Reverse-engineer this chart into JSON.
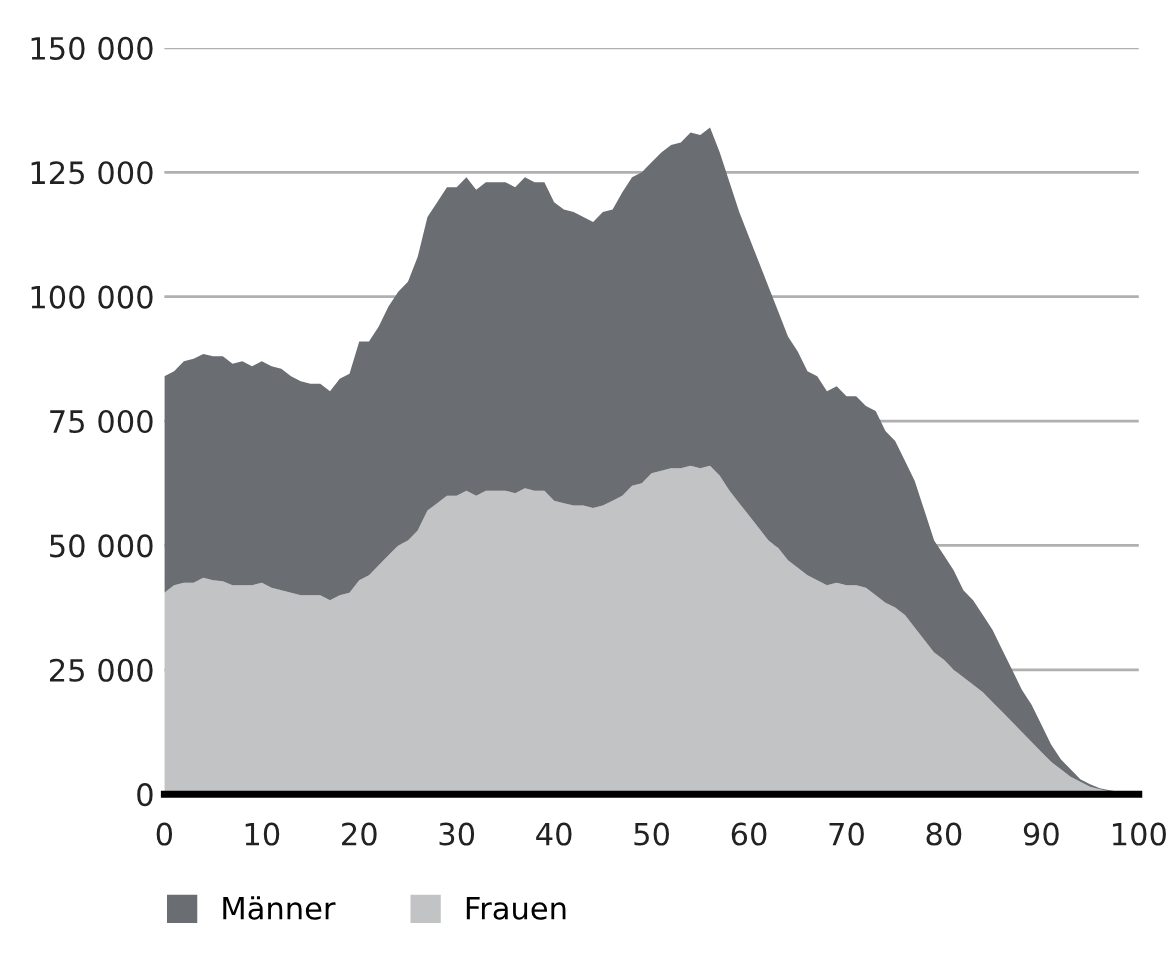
{
  "chart_data": {
    "type": "area",
    "stacked": true,
    "x": [
      0,
      1,
      2,
      3,
      4,
      5,
      6,
      7,
      8,
      9,
      10,
      11,
      12,
      13,
      14,
      15,
      16,
      17,
      18,
      19,
      20,
      21,
      22,
      23,
      24,
      25,
      26,
      27,
      28,
      29,
      30,
      31,
      32,
      33,
      34,
      35,
      36,
      37,
      38,
      39,
      40,
      41,
      42,
      43,
      44,
      45,
      46,
      47,
      48,
      49,
      50,
      51,
      52,
      53,
      54,
      55,
      56,
      57,
      58,
      59,
      60,
      61,
      62,
      63,
      64,
      65,
      66,
      67,
      68,
      69,
      70,
      71,
      72,
      73,
      74,
      75,
      76,
      77,
      78,
      79,
      80,
      81,
      82,
      83,
      84,
      85,
      86,
      87,
      88,
      89,
      90,
      91,
      92,
      93,
      94,
      95,
      96,
      97,
      98,
      99,
      100
    ],
    "series": [
      {
        "name": "Frauen",
        "color": "#c2c3c5",
        "values": [
          40500,
          42000,
          42500,
          42500,
          43500,
          43000,
          42800,
          42000,
          42000,
          42000,
          42500,
          41500,
          41000,
          40500,
          40000,
          40000,
          40000,
          39000,
          40000,
          40500,
          43000,
          44000,
          46000,
          48000,
          50000,
          51000,
          53000,
          57000,
          58500,
          60000,
          60000,
          61000,
          60000,
          61000,
          61000,
          61000,
          60500,
          61500,
          61000,
          61000,
          59000,
          58500,
          58000,
          58000,
          57500,
          58000,
          59000,
          60000,
          62000,
          62500,
          64500,
          65000,
          65500,
          65500,
          66000,
          65500,
          66000,
          64000,
          61000,
          58500,
          56000,
          53500,
          51000,
          49500,
          47000,
          45500,
          44000,
          43000,
          42000,
          42500,
          42000,
          42000,
          41500,
          40000,
          38500,
          37500,
          36000,
          33500,
          31000,
          28500,
          27000,
          25000,
          23500,
          22000,
          20500,
          18500,
          16500,
          14500,
          12500,
          10500,
          8500,
          6500,
          5000,
          3500,
          2500,
          1500,
          1000,
          600,
          400,
          300,
          200
        ]
      },
      {
        "name": "Männer",
        "color": "#6a6e72",
        "values": [
          43500,
          43000,
          44500,
          45000,
          45000,
          45000,
          45200,
          44500,
          45000,
          44000,
          44500,
          44500,
          44500,
          43500,
          43000,
          42500,
          42500,
          42000,
          43500,
          44000,
          48000,
          47000,
          48000,
          50000,
          51000,
          52000,
          55000,
          59000,
          60500,
          62000,
          62000,
          63000,
          61500,
          62000,
          62000,
          62000,
          61500,
          62500,
          62000,
          62000,
          60000,
          59000,
          59000,
          58000,
          57500,
          59000,
          58500,
          61000,
          62000,
          62500,
          62500,
          64000,
          65000,
          65500,
          67000,
          67000,
          68000,
          65000,
          62000,
          58500,
          56000,
          53500,
          51000,
          47500,
          45000,
          43500,
          41000,
          41000,
          39000,
          39500,
          38000,
          38000,
          36500,
          37000,
          34500,
          33500,
          31000,
          29500,
          26000,
          22500,
          21000,
          20000,
          17500,
          17000,
          15500,
          14500,
          12500,
          10500,
          8500,
          7500,
          5500,
          3500,
          2000,
          1500,
          500,
          500,
          200,
          200,
          100,
          0,
          0
        ]
      }
    ],
    "xlim": [
      0,
      100
    ],
    "xticks": [
      0,
      10,
      20,
      30,
      40,
      50,
      60,
      70,
      80,
      90,
      100
    ],
    "ylim": [
      0,
      150000
    ],
    "yticks": [
      {
        "value": 0,
        "label": "0"
      },
      {
        "value": 25000,
        "label": "25 000"
      },
      {
        "value": 50000,
        "label": "50 000"
      },
      {
        "value": 75000,
        "label": "75 000"
      },
      {
        "value": 100000,
        "label": "100 000"
      },
      {
        "value": 125000,
        "label": "125 000"
      },
      {
        "value": 150000,
        "label": "150 000"
      }
    ],
    "grid": "y",
    "legend": "bottom left"
  }
}
